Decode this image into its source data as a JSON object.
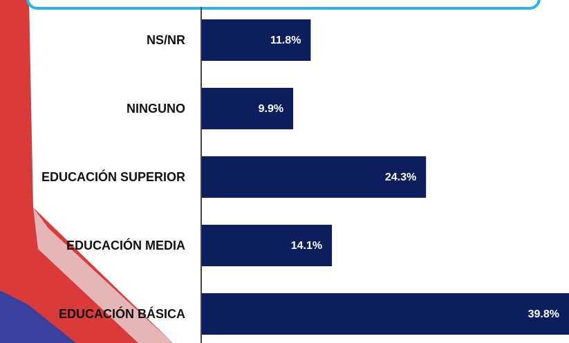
{
  "chart_data": {
    "type": "bar",
    "orientation": "horizontal",
    "categories": [
      "NS/NR",
      "NINGUNO",
      "EDUCACIÓN SUPERIOR",
      "EDUCACIÓN MEDIA",
      "EDUCACIÓN BÁSICA"
    ],
    "values": [
      11.8,
      9.9,
      24.3,
      14.1,
      39.8
    ],
    "value_labels": [
      "11.8%",
      "9.9%",
      "24.3%",
      "14.1%",
      "39.8%"
    ],
    "color": "#0c1f5c"
  }
}
